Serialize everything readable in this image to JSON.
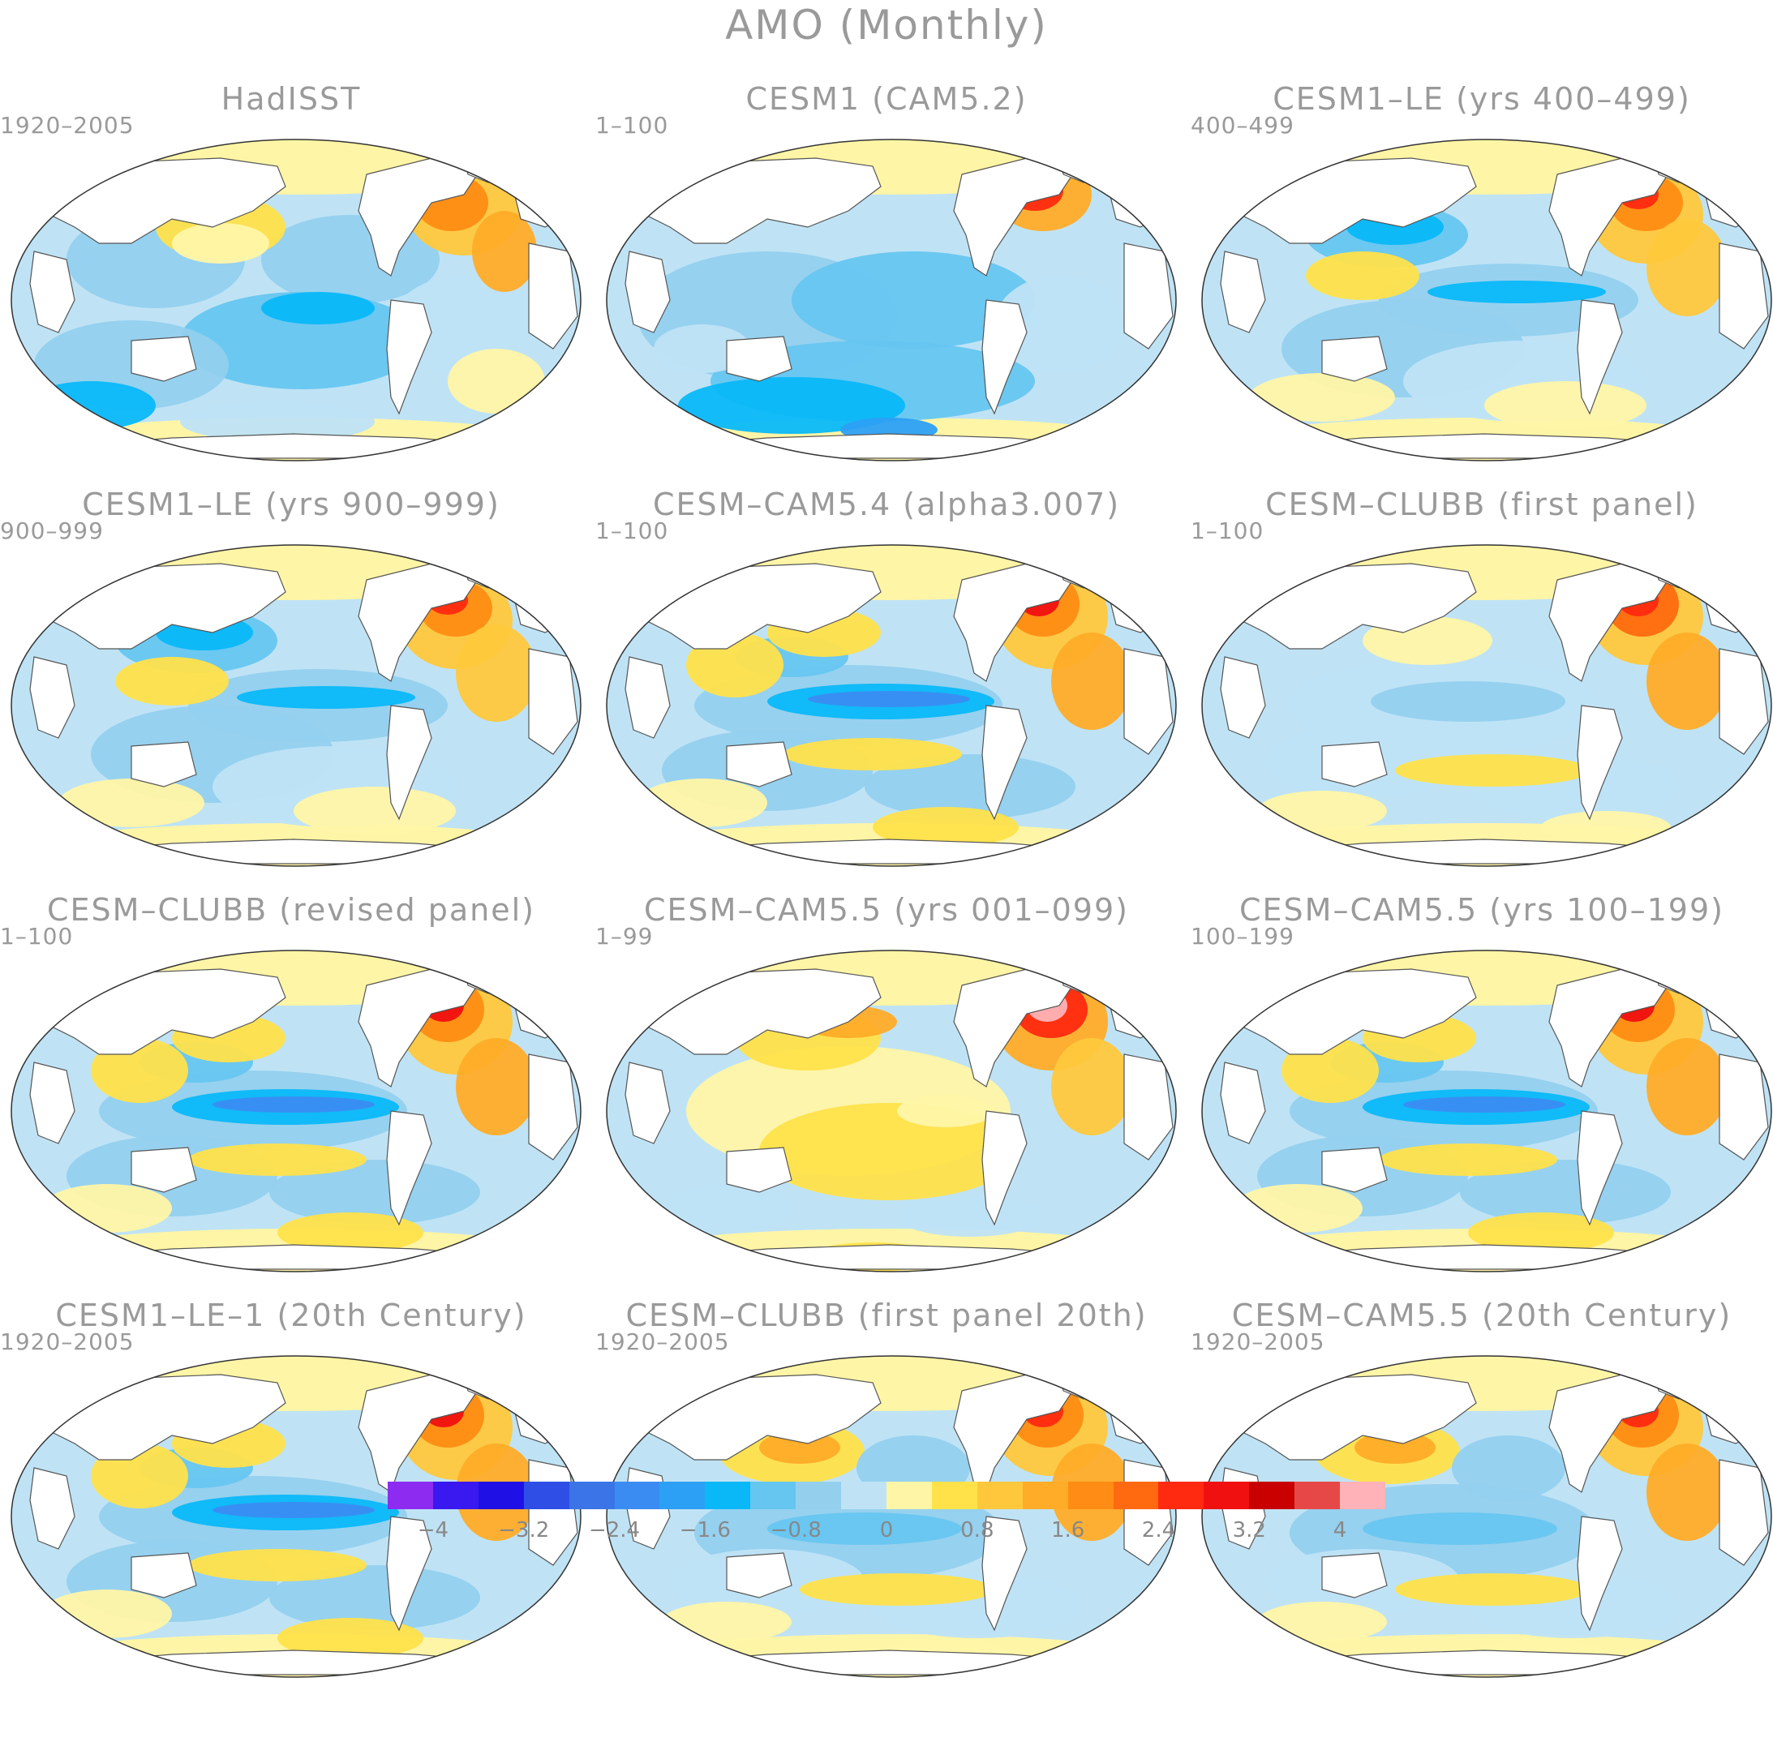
{
  "figure": {
    "title": "AMO (Monthly)"
  },
  "panels": [
    {
      "title": "HadISST",
      "years": "1920–2005",
      "pattern": "hadisst"
    },
    {
      "title": "CESM1 (CAM5.2)",
      "years": "1–100",
      "pattern": "cool"
    },
    {
      "title": "CESM1–LE (yrs 400–499)",
      "years": "400–499",
      "pattern": "npblue"
    },
    {
      "title": "CESM1–LE (yrs 900–999)",
      "years": "900–999",
      "pattern": "npblue"
    },
    {
      "title": "CESM–CAM5.4 (alpha3.007)",
      "years": "1–100",
      "pattern": "eqblue"
    },
    {
      "title": "CESM–CLUBB (first panel)",
      "years": "1–100",
      "pattern": "mild"
    },
    {
      "title": "CESM–CLUBB (revised panel)",
      "years": "1–100",
      "pattern": "eqblue"
    },
    {
      "title": "CESM–CAM5.5 (yrs 001–099)",
      "years": "1–99",
      "pattern": "warm"
    },
    {
      "title": "CESM–CAM5.5 (yrs 100–199)",
      "years": "100–199",
      "pattern": "eqblue"
    },
    {
      "title": "CESM1–LE–1 (20th Century)",
      "years": "1920–2005",
      "pattern": "eqblue"
    },
    {
      "title": "CESM–CLUBB (first panel 20th)",
      "years": "1920–2005",
      "pattern": "npwarm"
    },
    {
      "title": "CESM–CAM5.5 (20th Century)",
      "years": "1920–2005",
      "pattern": "npwarm"
    }
  ],
  "colorbar": {
    "colors": [
      "#8d2cf0",
      "#3a18f0",
      "#1f10e6",
      "#2f4ee6",
      "#3b74e6",
      "#3b8cf2",
      "#2ca0f5",
      "#0ab8f8",
      "#66c6f0",
      "#94d0ee",
      "#bfe3f5",
      "#fff5a6",
      "#ffe24a",
      "#ffc83c",
      "#ffac28",
      "#ff8c14",
      "#ff6a10",
      "#ff2a10",
      "#f01010",
      "#c80000",
      "#e64848",
      "#ffb3b8"
    ],
    "tick_labels": [
      "−4",
      "−3.2",
      "−2.4",
      "−1.6",
      "−0.8",
      "0",
      "0.8",
      "1.6",
      "2.4",
      "3.2",
      "4"
    ]
  }
}
